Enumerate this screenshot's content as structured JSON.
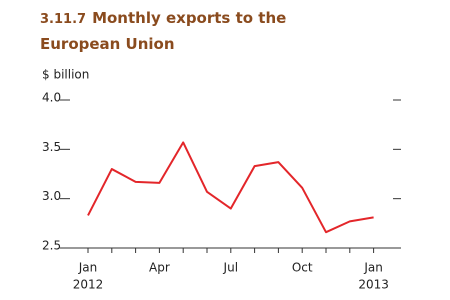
{
  "chart_data": {
    "type": "line",
    "figure_number": "3.11.7",
    "title": "Monthly exports to the European Union",
    "y_label": "$ billion",
    "categories": [
      "Jan",
      null,
      null,
      "Apr",
      null,
      null,
      "Jul",
      null,
      null,
      "Oct",
      null,
      null,
      "Jan"
    ],
    "years": [
      "2012",
      null,
      null,
      null,
      null,
      null,
      null,
      null,
      null,
      null,
      null,
      null,
      "2013"
    ],
    "series": [
      {
        "name": "Exports",
        "color": "#e3262a",
        "values": [
          2.83,
          3.3,
          3.17,
          3.16,
          3.57,
          3.07,
          2.9,
          3.33,
          3.37,
          3.11,
          2.66,
          2.77,
          2.81
        ]
      }
    ],
    "ylim": [
      2.5,
      4.0
    ],
    "yticks": [
      2.5,
      {
        "value": 3,
        "label": "3.0"
      },
      3.5,
      {
        "value": 4,
        "label": "4.0"
      }
    ],
    "title_color": "#8a4b1e"
  }
}
